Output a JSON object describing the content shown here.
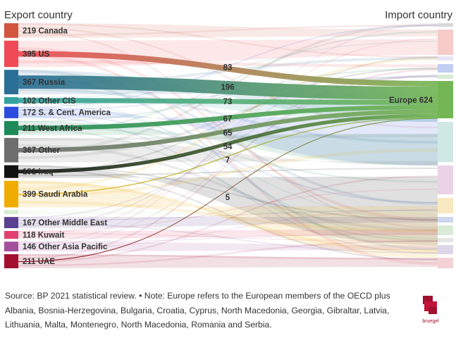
{
  "chart_data": {
    "type": "sankey",
    "left_title": "Export country",
    "right_title": "Import country",
    "exporters": [
      {
        "label": "219 Canada",
        "value": 219,
        "color": "#d1553f",
        "to_europe": 0
      },
      {
        "label": "395 US",
        "value": 395,
        "color": "#ef4a55",
        "to_europe": 83
      },
      {
        "label": "367 Russia",
        "value": 367,
        "color": "#2b6f97",
        "to_europe": 196
      },
      {
        "label": "102 Other CIS",
        "value": 102,
        "color": "#34a39f",
        "to_europe": 73
      },
      {
        "label": "172 S. & Cent. America",
        "value": 172,
        "color": "#2a4de0",
        "to_europe": 0
      },
      {
        "label": "211 West Africa",
        "value": 211,
        "color": "#1e8a57",
        "to_europe": 67
      },
      {
        "label": "367 Other",
        "value": 367,
        "color": "#6e6e6e",
        "to_europe": 65
      },
      {
        "label": "191 Iraq",
        "value": 191,
        "color": "#111111",
        "to_europe": 54
      },
      {
        "label": "399 Saudi Arabia",
        "value": 399,
        "color": "#f0ac00",
        "to_europe": 7
      },
      {
        "label": "",
        "value": 60,
        "color": "#d7edcf",
        "to_europe": 0
      },
      {
        "label": "167 Other Middle East",
        "value": 167,
        "color": "#5b3f91",
        "to_europe": 0
      },
      {
        "label": "118 Kuwait",
        "value": 118,
        "color": "#e0406f",
        "to_europe": 0
      },
      {
        "label": "146 Other Asia Pacific",
        "value": 146,
        "color": "#a3509c",
        "to_europe": 0
      },
      {
        "label": "211 UAE",
        "value": 211,
        "color": "#a3102f",
        "to_europe": 5
      }
    ],
    "flow_labels": [
      "83",
      "196",
      "73",
      "67",
      "65",
      "54",
      "7",
      "5"
    ],
    "europe": {
      "label": "Europe 624",
      "value": 624,
      "color": "#74b655"
    }
  },
  "footer": {
    "text": "Source: BP 2021 statistical review. • Note: Europe refers to the European members of the OECD plus Albania, Bosnia-Herzegovina, Bulgaria, Croatia, Cyprus, North Macedonia, Georgia, Gibraltar, Latvia, Lithuania, Malta, Montenegro, North Macedonia, Romania and Serbia."
  },
  "logo": {
    "text": "bruegel",
    "color": "#a3102f"
  }
}
